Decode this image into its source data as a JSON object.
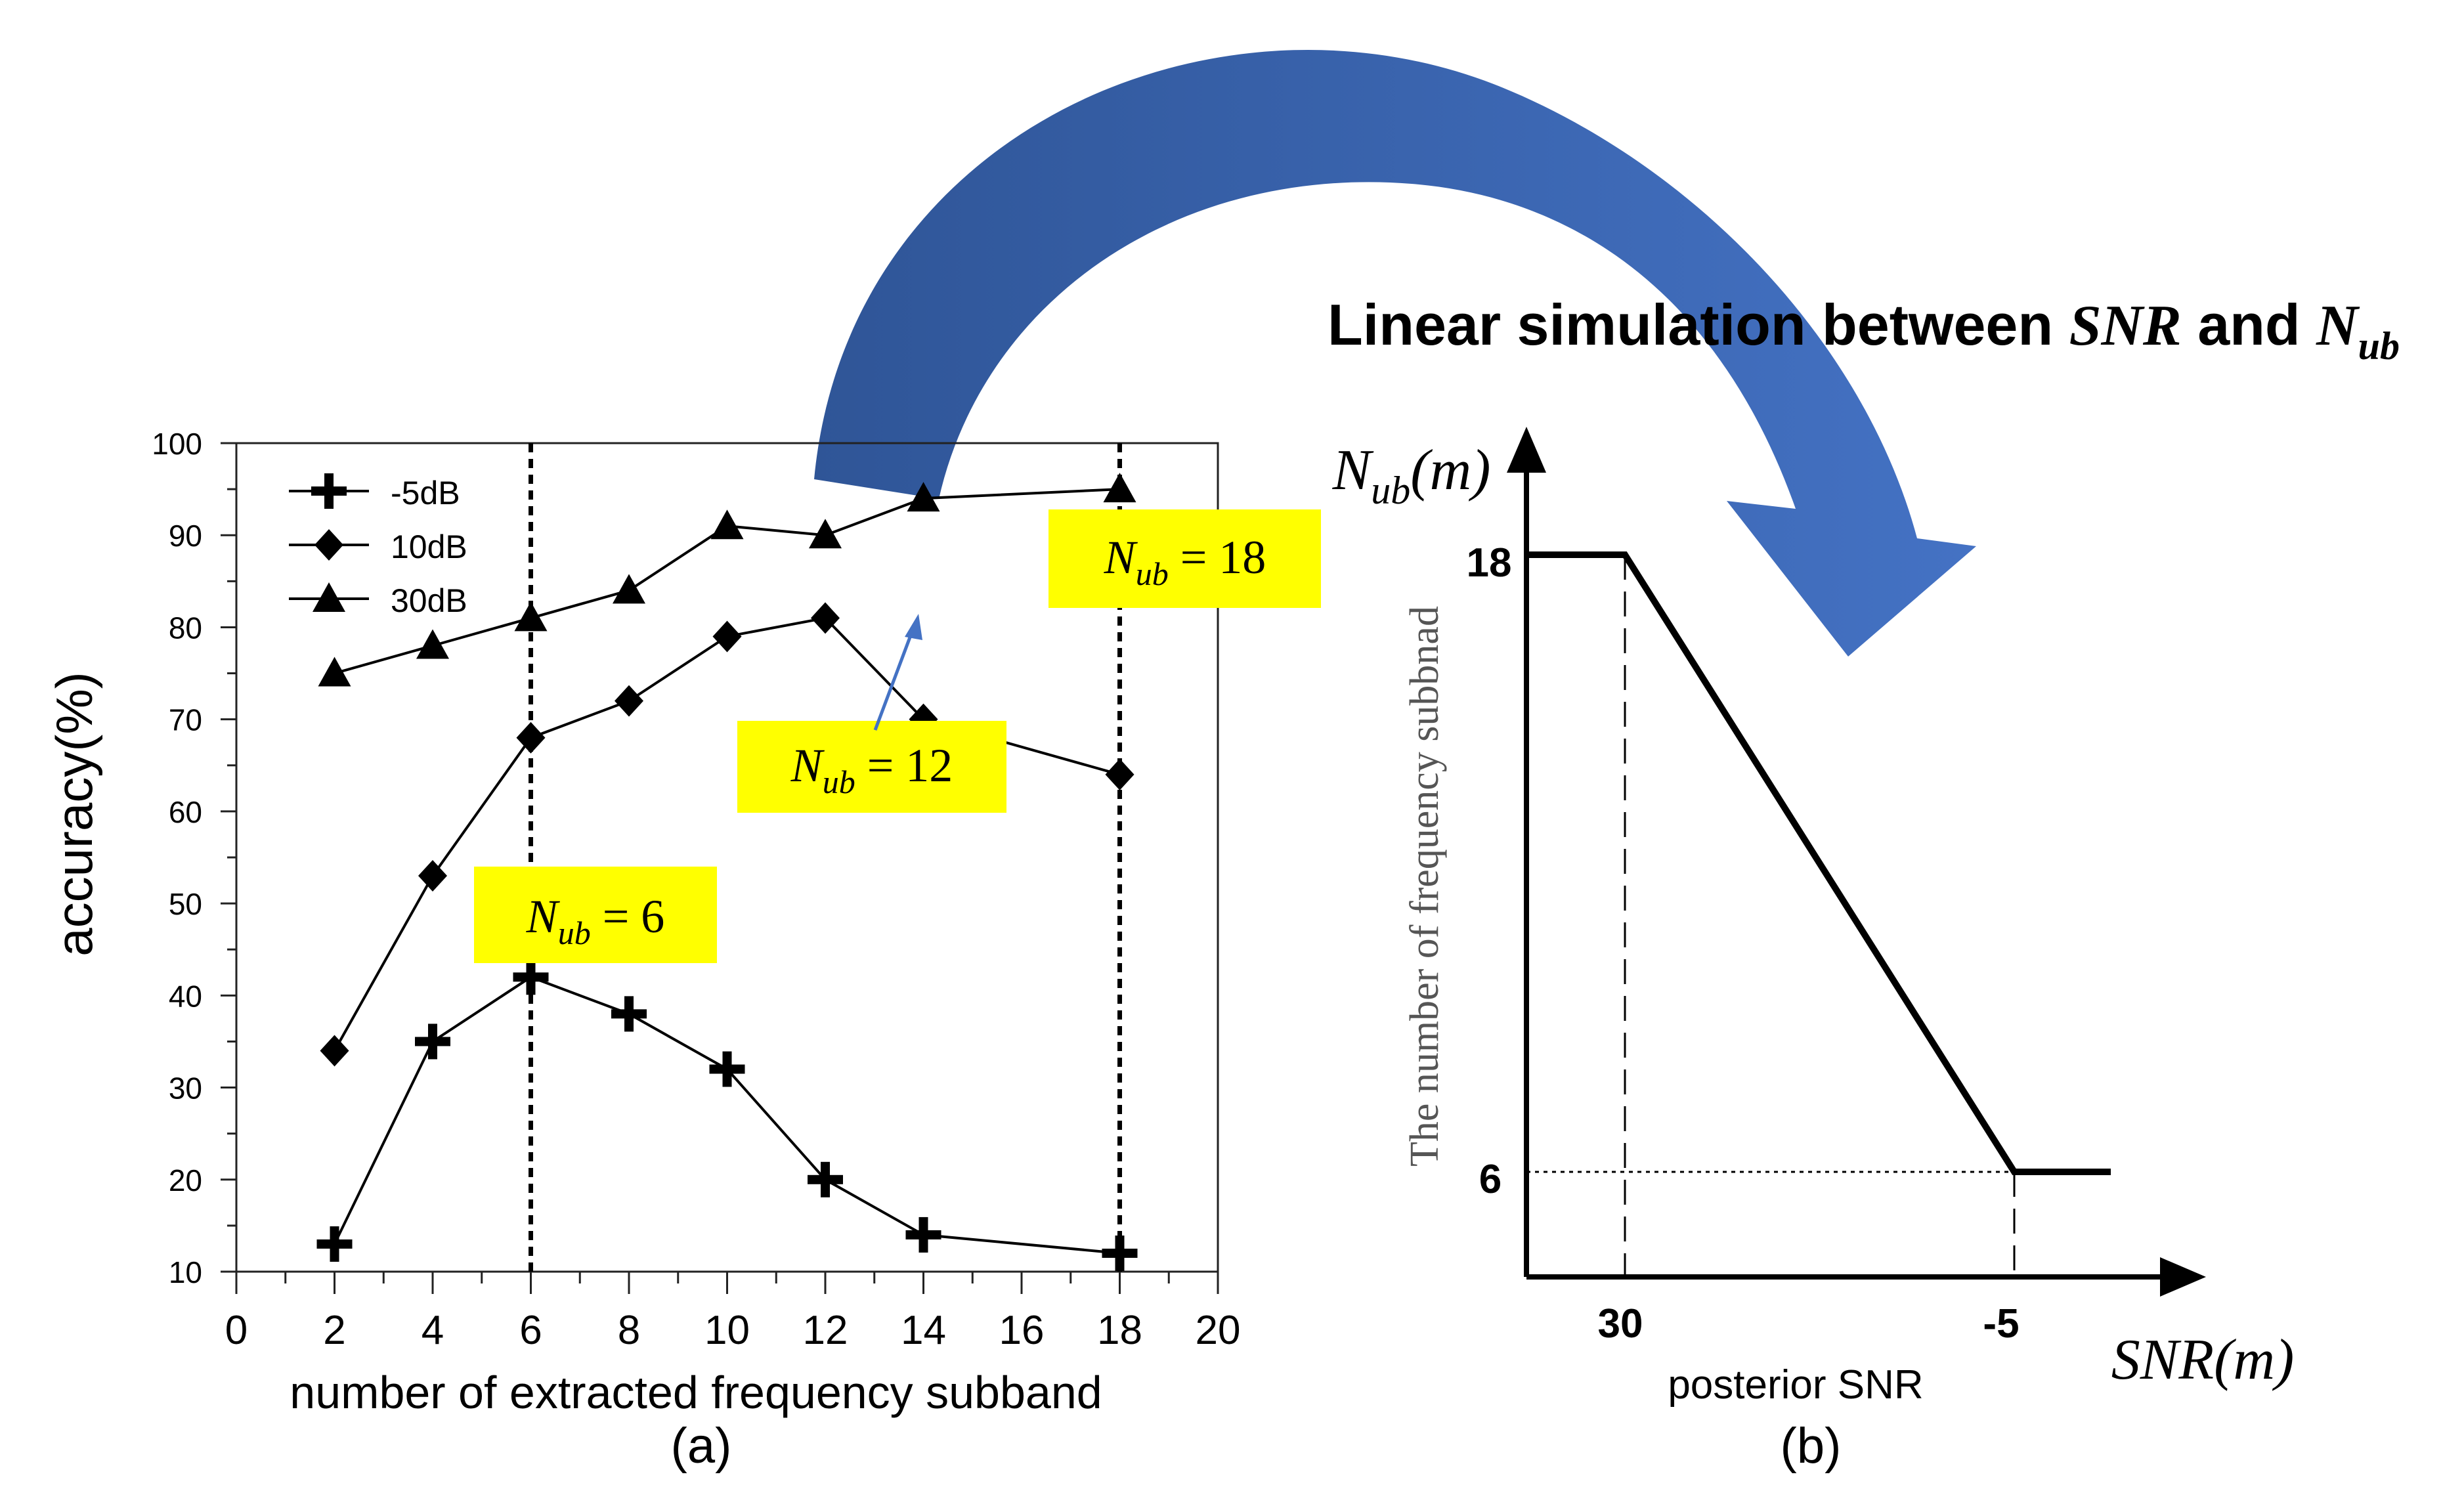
{
  "colors": {
    "arrow_dark": "#2f5597",
    "arrow_light": "#4472c4",
    "highlight": "#ffff00",
    "ink": "#000000",
    "pointer": "#4472c4"
  },
  "header": {
    "prefix": "Linear simulation between ",
    "snr": "SNR",
    "mid": " and ",
    "n": "N",
    "sub": "ub"
  },
  "panel_a": {
    "caption": "(a)",
    "chart_data": {
      "type": "line",
      "xlabel": "number of extracted frequency subband",
      "ylabel": "accuracy(%)",
      "xlim": [
        0,
        20
      ],
      "ylim": [
        10,
        100
      ],
      "x_tick_labels": [
        "0",
        "2",
        "4",
        "6",
        "8",
        "10",
        "12",
        "14",
        "16",
        "18",
        "20"
      ],
      "y_tick_labels": [
        "10",
        "20",
        "30",
        "40",
        "50",
        "60",
        "70",
        "80",
        "90",
        "100"
      ],
      "legend_position": "top-left",
      "x": [
        2,
        4,
        6,
        8,
        10,
        12,
        14,
        18
      ],
      "series": [
        {
          "name": "-5dB",
          "marker": "plus",
          "values": [
            13,
            35,
            42,
            38,
            32,
            20,
            14,
            12
          ]
        },
        {
          "name": "10dB",
          "marker": "diamond",
          "values": [
            34,
            53,
            68,
            72,
            79,
            81,
            70,
            64
          ]
        },
        {
          "name": "30dB",
          "marker": "triangle",
          "values": [
            75,
            78,
            81,
            84,
            91,
            90,
            94,
            95
          ]
        }
      ],
      "vertical_reference_lines": [
        6,
        18
      ],
      "annotations": [
        {
          "n": "N",
          "sub": "ub",
          "rest": " = 6"
        },
        {
          "n": "N",
          "sub": "ub",
          "rest": " = 12"
        },
        {
          "n": "N",
          "sub": "ub",
          "rest": " = 18"
        }
      ]
    }
  },
  "panel_b": {
    "caption": "(b)",
    "chart_data": {
      "type": "line",
      "x_tick_labels": [
        "30",
        "-5"
      ],
      "y_tick_labels": [
        "18",
        "6"
      ],
      "xlabel_caption": "posterior SNR",
      "x_axis_symbol": "SNR(m)",
      "y_axis_symbol": {
        "n": "N",
        "sub": "ub",
        "rest": "(m)"
      },
      "ylabel": "The number of frequency subbnad",
      "series": [
        {
          "x": [
            "left edge",
            "30",
            "-5",
            "right end"
          ],
          "values": [
            18,
            18,
            6,
            6
          ]
        }
      ]
    }
  }
}
